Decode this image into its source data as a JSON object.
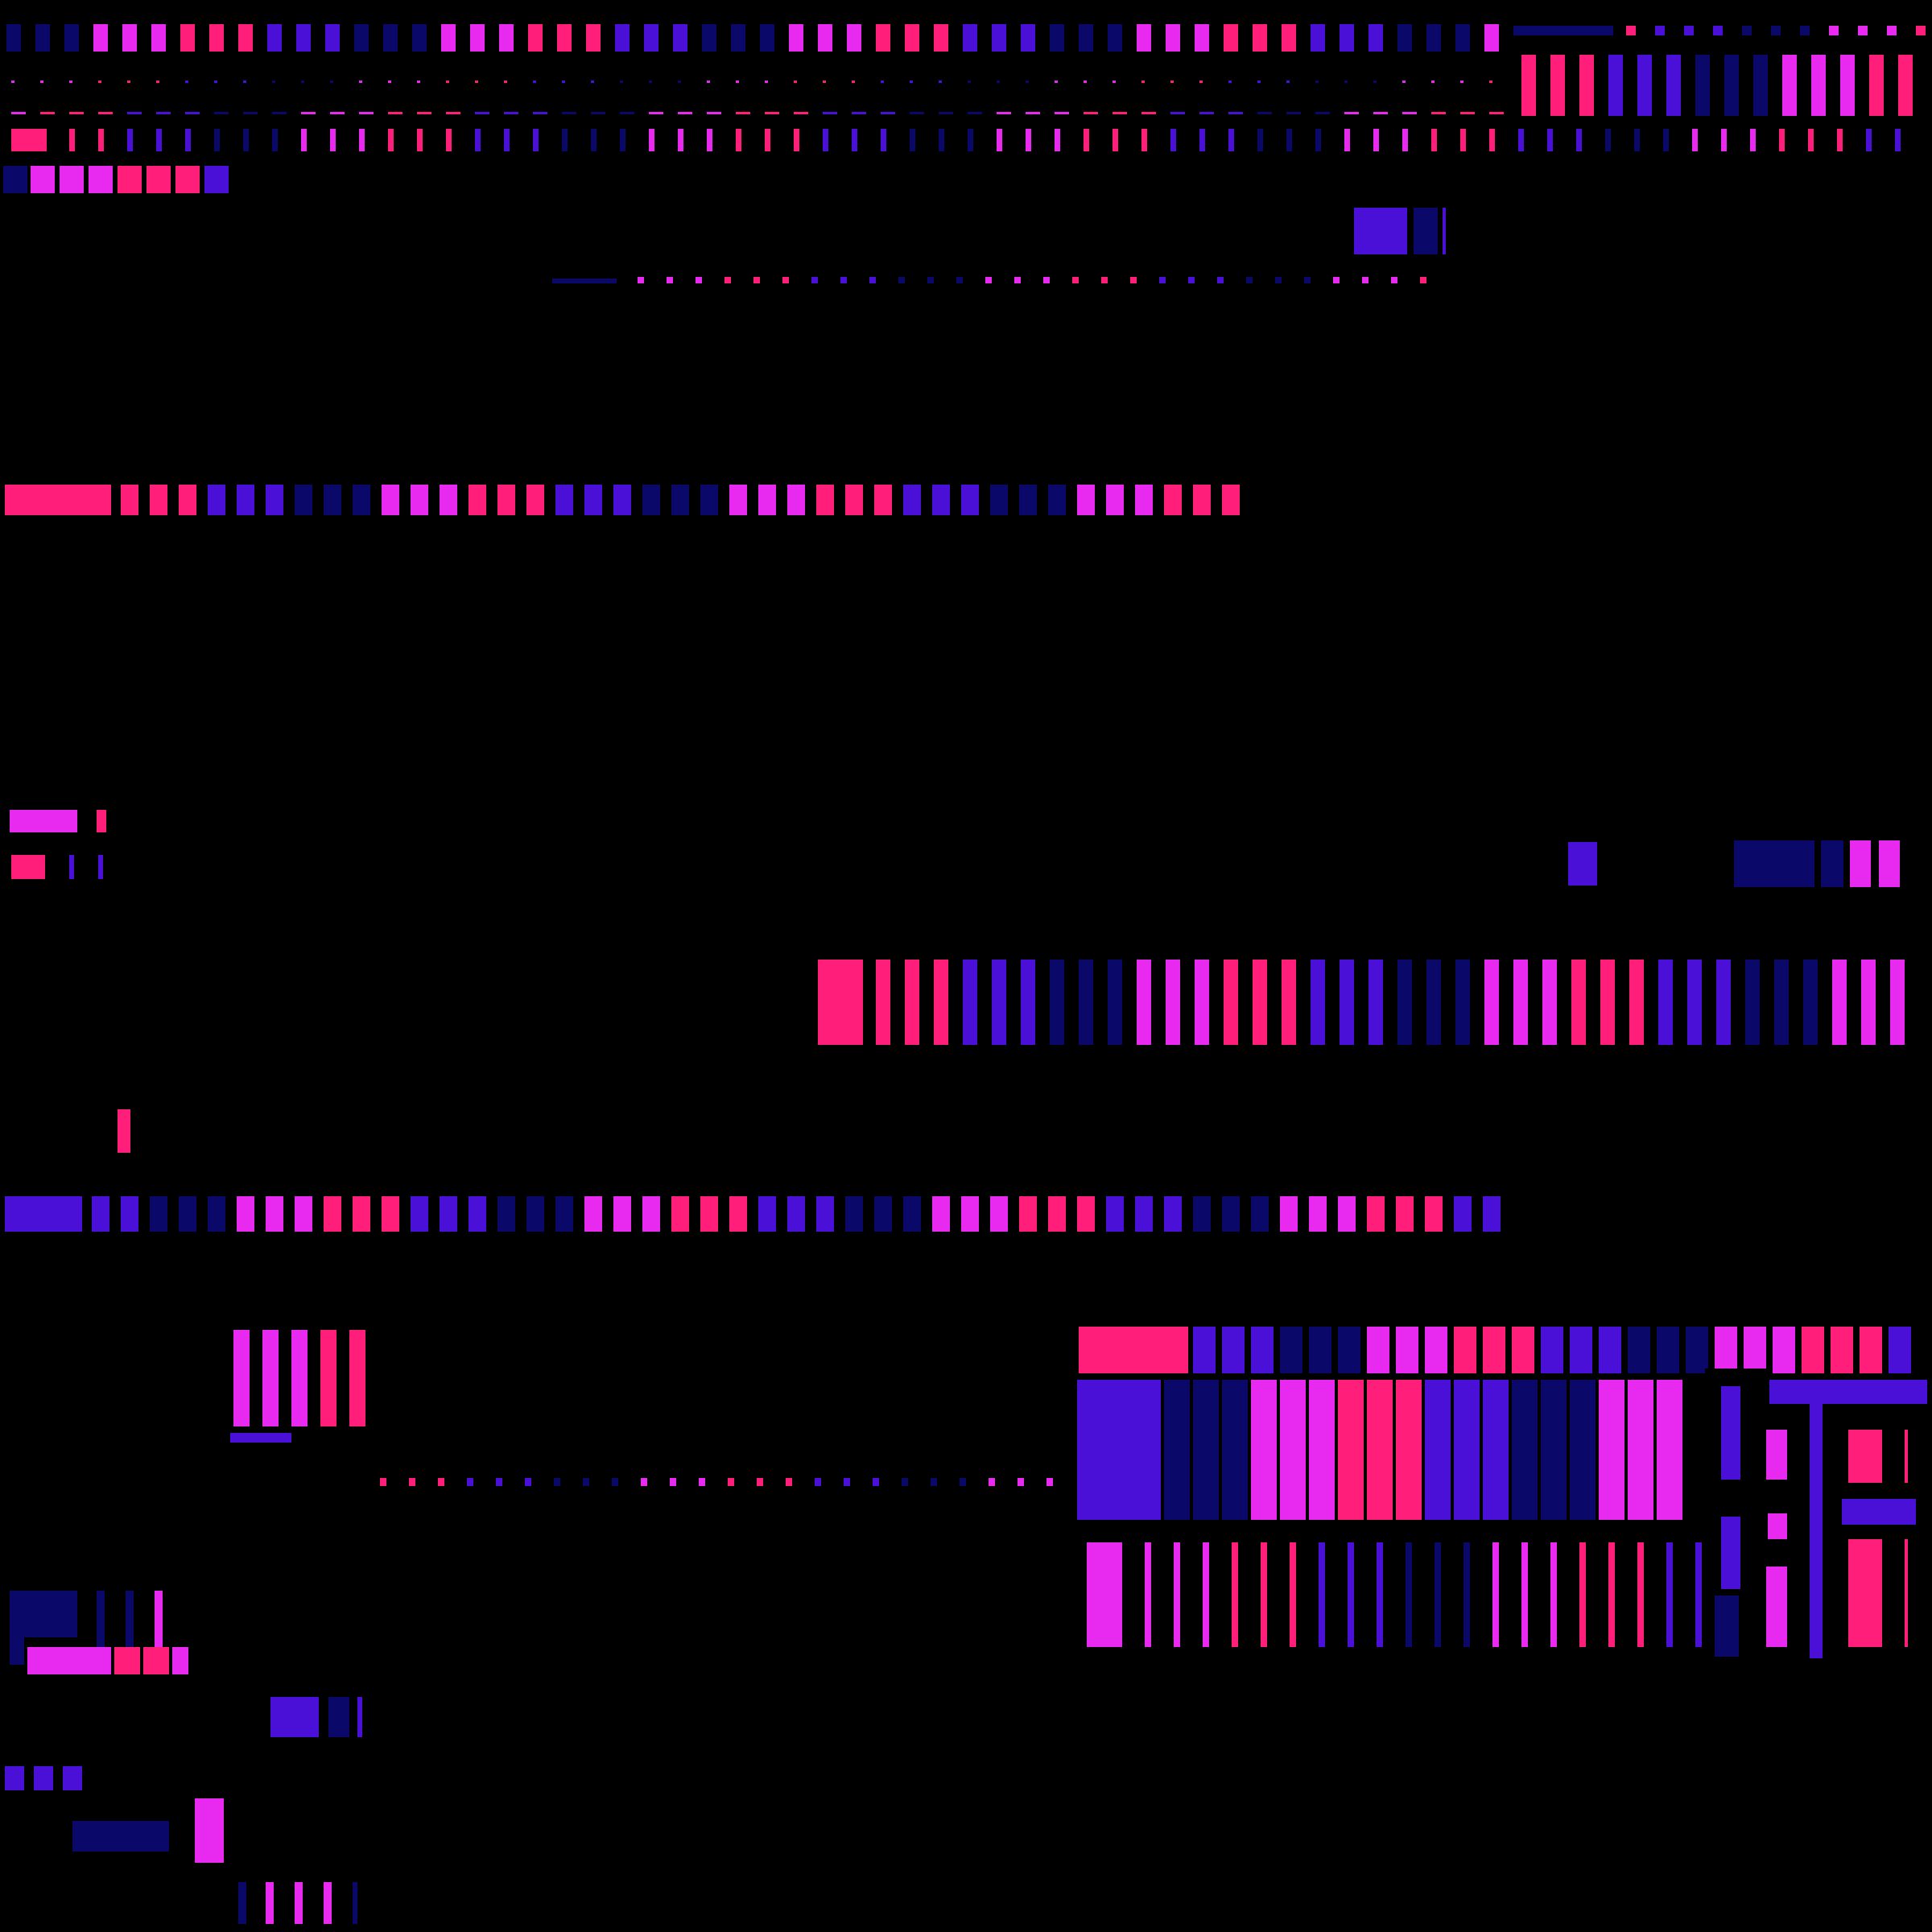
{
  "palette": {
    "background": "#000000",
    "hot_pink": "#ff1f7a",
    "magenta": "#e82af0",
    "violet": "#4a10d8",
    "navy": "#0a0868"
  },
  "color_cycle": [
    "magenta",
    "magenta",
    "magenta",
    "hot_pink",
    "hot_pink",
    "hot_pink",
    "violet",
    "violet",
    "violet",
    "navy",
    "navy",
    "navy"
  ]
}
